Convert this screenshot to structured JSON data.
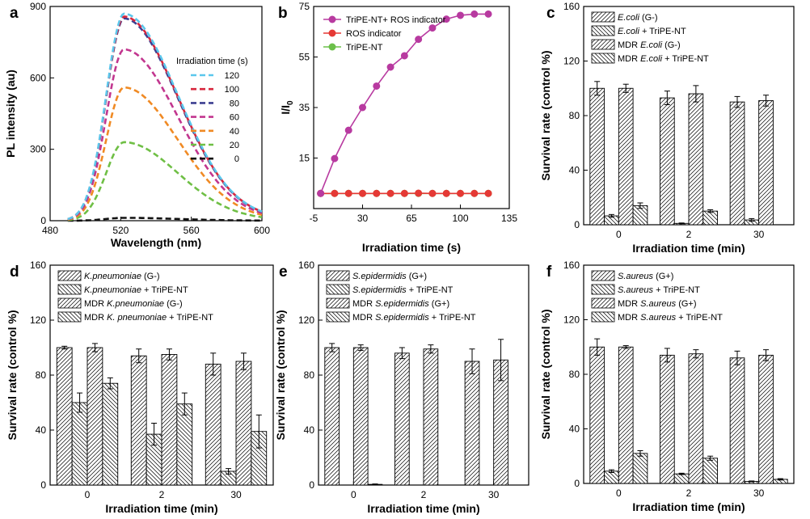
{
  "colors": {
    "pl_120": "#5bc7ec",
    "pl_100": "#d7263d",
    "pl_80": "#3c3f91",
    "pl_60": "#c2368f",
    "pl_40": "#f08a24",
    "pl_20": "#6fbf45",
    "pl_0": "#111111",
    "tripe_ros": "#b83aa0",
    "ros": "#e53935",
    "tripe": "#6cc04a"
  },
  "chart_data": [
    {
      "id": "a",
      "panel_label": "a",
      "type": "line",
      "xlabel": "Wavelength (nm)",
      "ylabel": "PL intensity (au)",
      "xlim": [
        480,
        600
      ],
      "ylim": [
        0,
        900
      ],
      "xticks": [
        480,
        520,
        560,
        600
      ],
      "yticks": [
        0,
        300,
        600,
        900
      ],
      "legend_title": "Irradiation time (s)",
      "legend_position": "right",
      "series": [
        {
          "name": "120",
          "color_key": "pl_120",
          "peak": 870
        },
        {
          "name": "100",
          "color_key": "pl_100",
          "peak": 858
        },
        {
          "name": "80",
          "color_key": "pl_80",
          "peak": 850
        },
        {
          "name": "60",
          "color_key": "pl_60",
          "peak": 720
        },
        {
          "name": "40",
          "color_key": "pl_40",
          "peak": 560
        },
        {
          "name": "20",
          "color_key": "pl_20",
          "peak": 330
        },
        {
          "name": "0",
          "color_key": "pl_0",
          "peak": 12
        }
      ]
    },
    {
      "id": "b",
      "panel_label": "b",
      "type": "line",
      "xlabel": "Irradiation time (s)",
      "ylabel": "I/I0",
      "xlim": [
        -5,
        135
      ],
      "ylim": [
        -5,
        75
      ],
      "xticks": [
        -5,
        30,
        65,
        100,
        135
      ],
      "yticks": [
        15,
        35,
        55,
        75
      ],
      "legend_position": "top-left",
      "x": [
        0,
        10,
        20,
        30,
        40,
        50,
        60,
        70,
        80,
        90,
        100,
        110,
        120
      ],
      "series": [
        {
          "name": "TriPE-NT+ ROS indicator",
          "color_key": "tripe_ros",
          "values": [
            1,
            14.8,
            26,
            35,
            43.5,
            51,
            55.5,
            62,
            66.5,
            70,
            71.5,
            72,
            72
          ]
        },
        {
          "name": "ROS indicator",
          "color_key": "ros",
          "values": [
            1,
            1,
            1,
            1,
            1,
            1,
            1,
            1.1,
            1,
            1,
            1,
            1,
            1
          ]
        },
        {
          "name": "TriPE-NT",
          "color_key": "tripe",
          "values": [
            1,
            1,
            1,
            1,
            1,
            1,
            1,
            1,
            1,
            1,
            1,
            1,
            1
          ]
        }
      ]
    },
    {
      "id": "c",
      "panel_label": "c",
      "type": "bar",
      "xlabel": "Irradiation time (min)",
      "ylabel": "Survival rate (control %)",
      "categories": [
        "0",
        "2",
        "30"
      ],
      "ylim": [
        0,
        160
      ],
      "yticks": [
        0,
        40,
        80,
        120,
        160
      ],
      "legend_position": "top",
      "series": [
        {
          "name": "E.coli (G-)",
          "italic": "E.coli",
          "rest": " (G-)",
          "pattern": "hatch-fwd",
          "values": [
            100,
            93,
            90
          ],
          "errors": [
            5,
            5,
            4
          ]
        },
        {
          "name": "E.coli + TriPE-NT",
          "italic": "E.coli",
          "rest": " + TriPE-NT",
          "pattern": "hatch-back",
          "values": [
            6.5,
            1,
            3.5
          ],
          "errors": [
            1,
            0.3,
            1
          ]
        },
        {
          "name": "MDR E.coli (G-)",
          "prefix": "MDR ",
          "italic": "E.coli",
          "rest": " (G-)",
          "pattern": "hatch-fwd",
          "values": [
            100,
            96,
            91
          ],
          "errors": [
            3,
            6,
            4
          ]
        },
        {
          "name": "MDR E.coli + TriPE-NT",
          "prefix": "MDR ",
          "italic": "E.coli",
          "rest": " + TriPE-NT",
          "pattern": "hatch-back",
          "values": [
            14,
            10,
            0
          ],
          "errors": [
            2,
            1,
            0
          ]
        }
      ]
    },
    {
      "id": "d",
      "panel_label": "d",
      "type": "bar",
      "xlabel": "Irradiation time (min)",
      "ylabel": "Survival rate (control %)",
      "categories": [
        "0",
        "2",
        "30"
      ],
      "ylim": [
        0,
        160
      ],
      "yticks": [
        0,
        40,
        80,
        120,
        160
      ],
      "legend_position": "top",
      "series": [
        {
          "name": "K.pneumoniae (G-)",
          "italic": "K.pneumoniae",
          "rest": " (G-)",
          "pattern": "hatch-fwd",
          "values": [
            100,
            94,
            88
          ],
          "errors": [
            1,
            5,
            8
          ]
        },
        {
          "name": "K.pneumoniae + TriPE-NT",
          "italic": "K.pneumoniae",
          "rest": " + TriPE-NT",
          "pattern": "hatch-back",
          "values": [
            60,
            37,
            10
          ],
          "errors": [
            7,
            8,
            2
          ]
        },
        {
          "name": "MDR K.pneumoniae (G-)",
          "prefix": "MDR ",
          "italic": "K.pneumoniae",
          "rest": " (G-)",
          "pattern": "hatch-fwd",
          "values": [
            100,
            95,
            90
          ],
          "errors": [
            3,
            4,
            6
          ]
        },
        {
          "name": "MDR K. pneumoniae + TriPE-NT",
          "prefix": "MDR ",
          "italic": "K. pneumoniae",
          "rest": " + TriPE-NT",
          "pattern": "hatch-back",
          "values": [
            74,
            59,
            39
          ],
          "errors": [
            4,
            8,
            12
          ]
        }
      ]
    },
    {
      "id": "e",
      "panel_label": "e",
      "type": "bar",
      "xlabel": "Irradiation time (min)",
      "ylabel": "Survival rate (control %)",
      "categories": [
        "0",
        "2",
        "30"
      ],
      "ylim": [
        0,
        160
      ],
      "yticks": [
        0,
        40,
        80,
        120,
        160
      ],
      "legend_position": "top",
      "series": [
        {
          "name": "S.epidermidis (G+)",
          "italic": "S.epidermidis",
          "rest": " (G+)",
          "pattern": "hatch-fwd",
          "values": [
            100,
            96,
            90
          ],
          "errors": [
            3,
            4,
            9
          ]
        },
        {
          "name": "S.epidermidis + TriPE-NT",
          "italic": "S.epidermidis",
          "rest": " + TriPE-NT",
          "pattern": "hatch-back",
          "values": [
            0,
            0,
            0
          ],
          "errors": [
            0,
            0,
            0
          ]
        },
        {
          "name": "MDR S.epidermidis (G+)",
          "prefix": "MDR ",
          "italic": "S.epidermidis",
          "rest": " (G+)",
          "pattern": "hatch-fwd",
          "values": [
            100,
            99,
            91
          ],
          "errors": [
            2,
            3,
            15
          ]
        },
        {
          "name": "MDR S.epidermidis + TriPE-NT",
          "prefix": "MDR ",
          "italic": "S.epidermidis",
          "rest": " + TriPE-NT",
          "pattern": "hatch-back",
          "values": [
            0.5,
            0,
            0
          ],
          "errors": [
            0.3,
            0,
            0
          ]
        }
      ]
    },
    {
      "id": "f",
      "panel_label": "f",
      "type": "bar",
      "xlabel": "Irradiation time (min)",
      "ylabel": "Survival rate (control %)",
      "categories": [
        "0",
        "2",
        "30"
      ],
      "ylim": [
        0,
        160
      ],
      "yticks": [
        0,
        40,
        80,
        120,
        160
      ],
      "legend_position": "top",
      "series": [
        {
          "name": "S.aureus (G+)",
          "italic": "S.aureus",
          "rest": " (G+)",
          "pattern": "hatch-fwd",
          "values": [
            100,
            94,
            92
          ],
          "errors": [
            6,
            5,
            5
          ]
        },
        {
          "name": "S.aureus + TriPE-NT",
          "italic": "S.aureus",
          "rest": " + TriPE-NT",
          "pattern": "hatch-back",
          "values": [
            9,
            7,
            1.5
          ],
          "errors": [
            1,
            0.5,
            0.3
          ]
        },
        {
          "name": "MDR S.aureus (G+)",
          "prefix": "MDR ",
          "italic": "S.aureus",
          "rest": " (G+)",
          "pattern": "hatch-fwd",
          "values": [
            100,
            95,
            94
          ],
          "errors": [
            1,
            3,
            4
          ]
        },
        {
          "name": "MDR S.aureus + TriPE-NT",
          "prefix": "MDR ",
          "italic": "S.aureus",
          "rest": " + TriPE-NT",
          "pattern": "hatch-back",
          "values": [
            22,
            18.5,
            3
          ],
          "errors": [
            2,
            1.5,
            0.5
          ]
        }
      ]
    }
  ]
}
